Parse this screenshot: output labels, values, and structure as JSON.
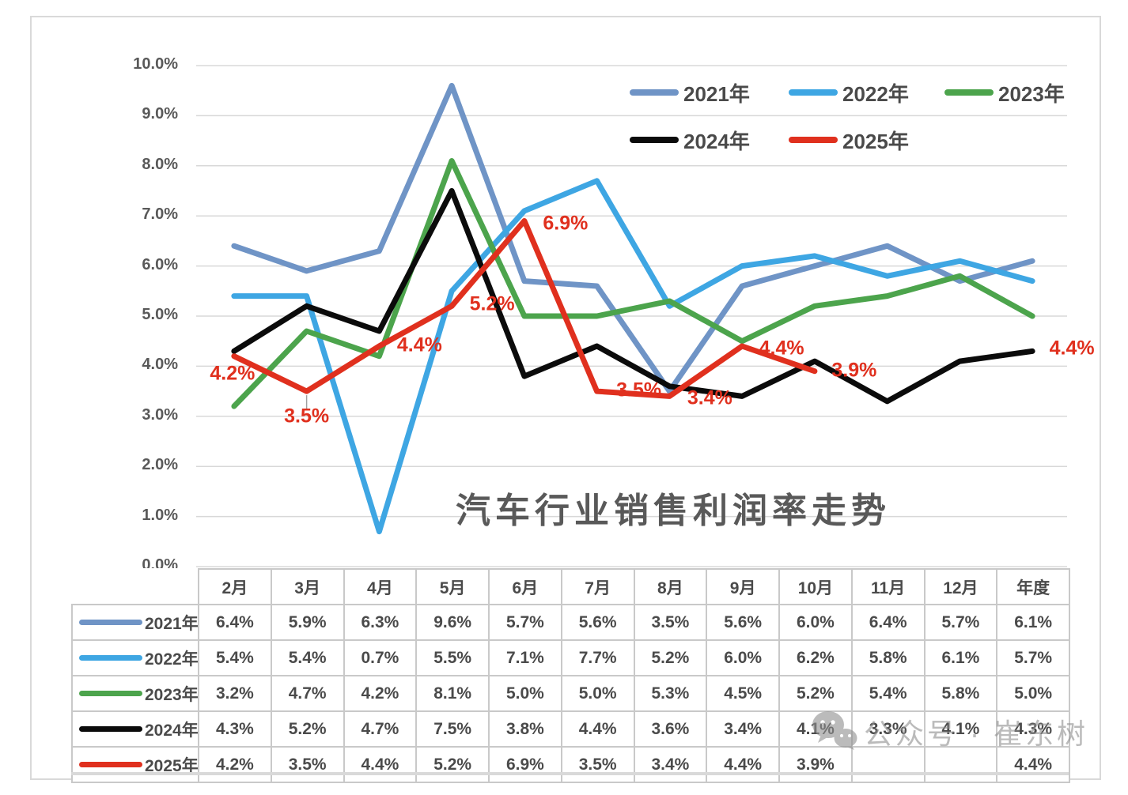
{
  "watermark": {
    "text": "公众号 · 崔东树",
    "icon": "wechat-icon"
  },
  "chart_data": {
    "type": "line",
    "title": "汽车行业销售利润率走势",
    "categories": [
      "2月",
      "3月",
      "4月",
      "5月",
      "6月",
      "7月",
      "8月",
      "9月",
      "10月",
      "11月",
      "12月",
      "年度"
    ],
    "y_ticks": [
      "10.0%",
      "9.0%",
      "8.0%",
      "7.0%",
      "6.0%",
      "5.0%",
      "4.0%",
      "3.0%",
      "2.0%",
      "1.0%",
      "0.0%"
    ],
    "ylim": [
      0,
      10
    ],
    "grid": true,
    "legend_position": "inside-top-right-two-rows",
    "series": [
      {
        "name": "2021年",
        "color": "#6F94C6",
        "values": [
          6.4,
          5.9,
          6.3,
          9.6,
          5.7,
          5.6,
          3.5,
          5.6,
          6.0,
          6.4,
          5.7,
          6.1
        ]
      },
      {
        "name": "2022年",
        "color": "#3EA6E3",
        "values": [
          5.4,
          5.4,
          0.7,
          5.5,
          7.1,
          7.7,
          5.2,
          6.0,
          6.2,
          5.8,
          6.1,
          5.7
        ]
      },
      {
        "name": "2023年",
        "color": "#4CA44C",
        "values": [
          3.2,
          4.7,
          4.2,
          8.1,
          5.0,
          5.0,
          5.3,
          4.5,
          5.2,
          5.4,
          5.8,
          5.0
        ]
      },
      {
        "name": "2024年",
        "color": "#0B0B0B",
        "values": [
          4.3,
          5.2,
          4.7,
          7.5,
          3.8,
          4.4,
          3.6,
          3.4,
          4.1,
          3.3,
          4.1,
          4.3
        ]
      },
      {
        "name": "2025年",
        "color": "#E0301E",
        "values": [
          4.2,
          3.5,
          4.4,
          5.2,
          6.9,
          3.5,
          3.4,
          4.4,
          3.9,
          null,
          null,
          4.4
        ],
        "data_labels": [
          "4.2%",
          "3.5%",
          "4.4%",
          "5.2%",
          "6.9%",
          "3.5%",
          "3.4%",
          "4.4%",
          "3.9%",
          null,
          null,
          "4.4%"
        ],
        "label_offsets": [
          [
            -2,
            22
          ],
          [
            0,
            32
          ],
          [
            51,
            -1
          ],
          [
            51,
            -2
          ],
          [
            52,
            3
          ],
          [
            53,
            -1
          ],
          [
            51,
            3
          ],
          [
            50,
            3
          ],
          [
            50,
            -1
          ],
          null,
          null,
          [
            50,
            3
          ]
        ],
        "label_leader_index": 1
      }
    ],
    "table": {
      "first_header_cell": "",
      "empty_cell": ""
    }
  }
}
